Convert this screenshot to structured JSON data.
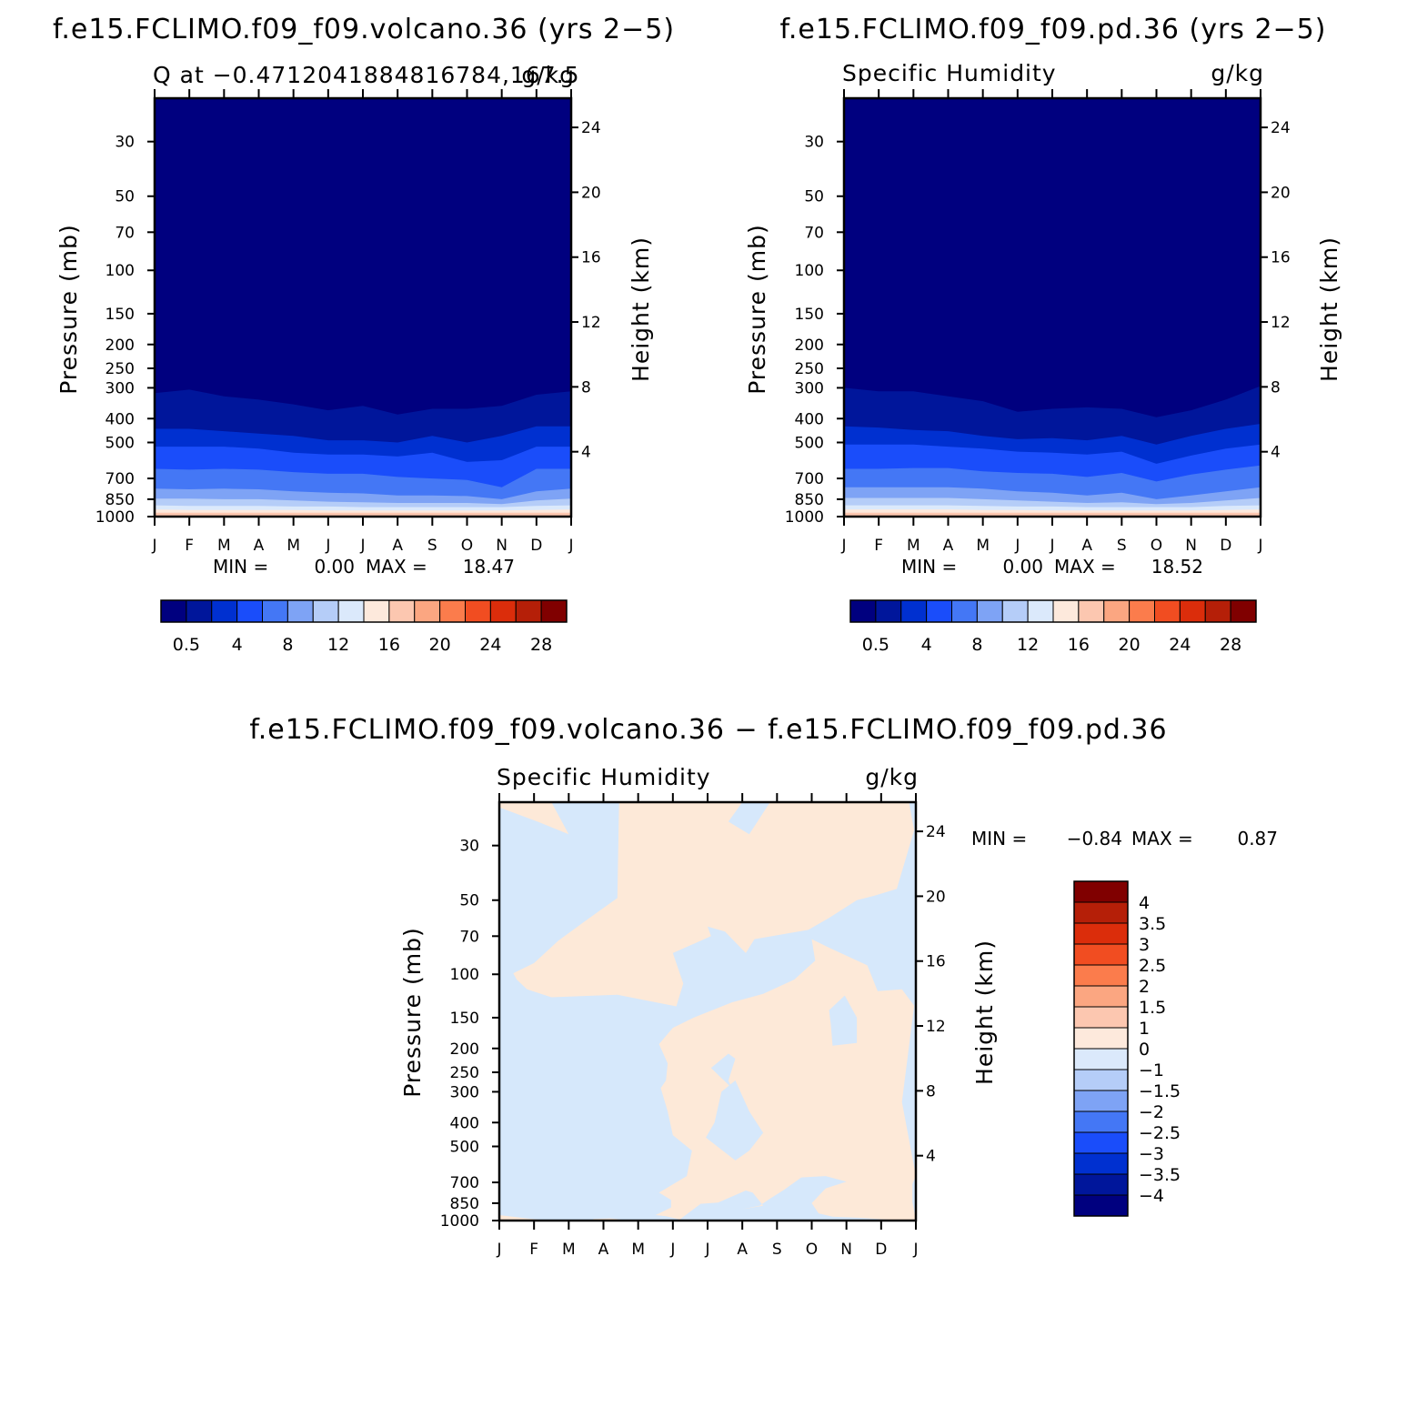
{
  "figure": {
    "panel1_title": "f.e15.FCLIMO.f09_f09.volcano.36 (yrs 2−5)",
    "panel2_title": "f.e15.FCLIMO.f09_f09.pd.36 (yrs 2−5)",
    "panel3_title": "f.e15.FCLIMO.f09_f09.volcano.36 − f.e15.FCLIMO.f09_f09.pd.36"
  },
  "chart_data": [
    {
      "type": "heatmap",
      "left_subtitle": "Q at −0.4712041884816784,167.5",
      "right_subtitle": "g/kg",
      "xlabel": "",
      "ylabel": "Pressure (mb)",
      "ylabel_right": "Height (km)",
      "x_tick_labels": [
        "J",
        "F",
        "M",
        "A",
        "M",
        "J",
        "J",
        "A",
        "S",
        "O",
        "N",
        "D",
        "J"
      ],
      "y_ticks": [
        "30",
        "50",
        "70",
        "100",
        "150",
        "200",
        "250",
        "300",
        "400",
        "500",
        "700",
        "850",
        "1000"
      ],
      "y2_ticks": [
        "24",
        "20",
        "16",
        "12",
        "8",
        "4"
      ],
      "ylim_mb": [
        1000,
        20
      ],
      "min_label": "MIN =",
      "min_value": "0.00",
      "max_label": "MAX =",
      "max_value": "18.47",
      "colorbar_labels": [
        "0.5",
        "4",
        "8",
        "12",
        "16",
        "20",
        "24",
        "28"
      ],
      "contour_levels": [
        0.01,
        0.1,
        0.5,
        1,
        2,
        4,
        6,
        8,
        10,
        12
      ],
      "contour_tops_mb": [
        [
          315,
          305,
          325,
          335,
          350,
          370,
          355,
          385,
          365,
          365,
          355,
          320,
          310
        ],
        [
          440,
          440,
          450,
          460,
          470,
          490,
          490,
          500,
          470,
          500,
          470,
          430,
          430
        ],
        [
          520,
          520,
          520,
          530,
          550,
          560,
          560,
          570,
          550,
          600,
          590,
          520,
          520
        ],
        [
          640,
          645,
          640,
          645,
          660,
          670,
          670,
          690,
          700,
          710,
          760,
          640,
          640
        ],
        [
          770,
          775,
          770,
          775,
          790,
          800,
          805,
          820,
          820,
          825,
          850,
          790,
          770
        ],
        [
          845,
          845,
          850,
          850,
          860,
          870,
          875,
          880,
          880,
          880,
          890,
          860,
          845
        ],
        [
          900,
          905,
          905,
          905,
          910,
          910,
          915,
          915,
          915,
          915,
          915,
          905,
          900
        ],
        [
          935,
          940,
          940,
          940,
          940,
          945,
          945,
          945,
          945,
          945,
          945,
          940,
          935
        ],
        [
          965,
          965,
          965,
          965,
          965,
          965,
          965,
          965,
          965,
          965,
          965,
          965,
          965
        ],
        [
          990,
          990,
          990,
          990,
          990,
          990,
          990,
          990,
          990,
          990,
          990,
          990,
          990
        ]
      ]
    },
    {
      "type": "heatmap",
      "left_subtitle": "Specific Humidity",
      "right_subtitle": "g/kg",
      "xlabel": "",
      "ylabel": "Pressure (mb)",
      "ylabel_right": "Height (km)",
      "x_tick_labels": [
        "J",
        "F",
        "M",
        "A",
        "M",
        "J",
        "J",
        "A",
        "S",
        "O",
        "N",
        "D",
        "J"
      ],
      "y_ticks": [
        "30",
        "50",
        "70",
        "100",
        "150",
        "200",
        "250",
        "300",
        "400",
        "500",
        "700",
        "850",
        "1000"
      ],
      "y2_ticks": [
        "24",
        "20",
        "16",
        "12",
        "8",
        "4"
      ],
      "ylim_mb": [
        1000,
        20
      ],
      "min_label": "MIN =",
      "min_value": "0.00",
      "max_label": "MAX =",
      "max_value": "18.52",
      "colorbar_labels": [
        "0.5",
        "4",
        "8",
        "12",
        "16",
        "20",
        "24",
        "28"
      ],
      "contour_levels": [
        0.01,
        0.1,
        0.5,
        1,
        2,
        4,
        6,
        8,
        10,
        12
      ],
      "contour_tops_mb": [
        [
          300,
          310,
          310,
          325,
          340,
          375,
          365,
          360,
          365,
          395,
          370,
          335,
          295
        ],
        [
          430,
          435,
          445,
          450,
          470,
          485,
          480,
          490,
          470,
          510,
          470,
          440,
          420
        ],
        [
          510,
          510,
          510,
          520,
          530,
          545,
          550,
          560,
          545,
          610,
          565,
          530,
          510
        ],
        [
          640,
          640,
          635,
          635,
          655,
          665,
          670,
          690,
          665,
          720,
          675,
          645,
          620
        ],
        [
          760,
          760,
          760,
          760,
          770,
          790,
          800,
          820,
          800,
          850,
          820,
          790,
          760
        ],
        [
          840,
          840,
          840,
          840,
          850,
          860,
          870,
          880,
          875,
          890,
          880,
          860,
          840
        ],
        [
          900,
          900,
          900,
          900,
          905,
          910,
          910,
          915,
          915,
          915,
          915,
          905,
          900
        ],
        [
          935,
          935,
          935,
          935,
          940,
          940,
          945,
          945,
          945,
          945,
          945,
          940,
          935
        ],
        [
          965,
          965,
          965,
          965,
          965,
          965,
          965,
          965,
          965,
          965,
          965,
          965,
          965
        ],
        [
          990,
          990,
          990,
          990,
          990,
          990,
          990,
          990,
          990,
          990,
          990,
          990,
          990
        ]
      ]
    },
    {
      "type": "heatmap",
      "left_subtitle": "Specific Humidity",
      "right_subtitle": "g/kg",
      "xlabel": "",
      "ylabel": "Pressure (mb)",
      "ylabel_right": "Height (km)",
      "x_tick_labels": [
        "J",
        "F",
        "M",
        "A",
        "M",
        "J",
        "J",
        "A",
        "S",
        "O",
        "N",
        "D",
        "J"
      ],
      "y_ticks": [
        "30",
        "50",
        "70",
        "100",
        "150",
        "200",
        "250",
        "300",
        "400",
        "500",
        "700",
        "850",
        "1000"
      ],
      "y2_ticks": [
        "24",
        "20",
        "16",
        "12",
        "8",
        "4"
      ],
      "ylim_mb": [
        1000,
        20
      ],
      "min_label": "MIN =",
      "min_value": "−0.84",
      "max_label": "MAX =",
      "max_value": "0.87",
      "colorbar_labels": [
        "4",
        "3.5",
        "3",
        "2.5",
        "2",
        "1.5",
        "1",
        "0",
        "−1",
        "−1.5",
        "−2",
        "−2.5",
        "−3",
        "−3.5",
        "−4"
      ],
      "background_interval": "(-1, 0)",
      "positive_region_interval": "(0, 1)",
      "positive_regions": [
        [
          [
            0,
            21
          ],
          [
            1.1,
            24
          ],
          [
            2.0,
            27
          ],
          [
            1.5,
            20
          ],
          [
            0,
            20
          ]
        ],
        [
          [
            0.4,
            99
          ],
          [
            1.0,
            90
          ],
          [
            1.7,
            73
          ],
          [
            2.6,
            59
          ],
          [
            3.4,
            49
          ],
          [
            3.45,
            20
          ],
          [
            7.0,
            20
          ],
          [
            6.6,
            24
          ],
          [
            7.2,
            27
          ],
          [
            7.8,
            20
          ],
          [
            11.8,
            20
          ],
          [
            11.95,
            26
          ],
          [
            11.45,
            45
          ],
          [
            10.8,
            48
          ],
          [
            10.3,
            50
          ],
          [
            9.5,
            59
          ],
          [
            8.9,
            66
          ],
          [
            7.35,
            72
          ],
          [
            7.1,
            82
          ],
          [
            6.5,
            67
          ],
          [
            6.0,
            64
          ],
          [
            6.1,
            70
          ],
          [
            5.0,
            82
          ],
          [
            5.3,
            109
          ],
          [
            5.1,
            135
          ],
          [
            3.4,
            121
          ],
          [
            1.5,
            124
          ],
          [
            0.8,
            115
          ],
          [
            0.5,
            105
          ]
        ],
        [
          [
            4.6,
            192
          ],
          [
            5.0,
            165
          ],
          [
            5.6,
            150
          ],
          [
            6.7,
            130
          ],
          [
            7.6,
            120
          ],
          [
            8.5,
            105
          ],
          [
            9.1,
            88
          ],
          [
            9.0,
            72
          ],
          [
            9.5,
            78
          ],
          [
            10.6,
            92
          ],
          [
            10.9,
            117
          ],
          [
            11.6,
            115
          ],
          [
            11.95,
            134
          ],
          [
            11.6,
            330
          ],
          [
            12.0,
            660
          ],
          [
            11.9,
            710
          ],
          [
            11.9,
            840
          ],
          [
            12.0,
            990
          ],
          [
            11.6,
            1000
          ],
          [
            10.4,
            975
          ],
          [
            9.6,
            965
          ],
          [
            9.2,
            935
          ],
          [
            9.0,
            850
          ],
          [
            9.4,
            740
          ],
          [
            10.0,
            695
          ],
          [
            9.4,
            660
          ],
          [
            8.7,
            668
          ],
          [
            8.2,
            750
          ],
          [
            7.8,
            815
          ],
          [
            7.5,
            870
          ],
          [
            7.0,
            900
          ],
          [
            7.6,
            870
          ],
          [
            7.3,
            770
          ],
          [
            7.1,
            755
          ],
          [
            6.3,
            845
          ],
          [
            5.8,
            855
          ],
          [
            5.2,
            990
          ],
          [
            4.8,
            960
          ],
          [
            4.5,
            950
          ],
          [
            4.95,
            885
          ],
          [
            4.95,
            825
          ],
          [
            4.6,
            770
          ],
          [
            5.4,
            660
          ],
          [
            5.55,
            520
          ],
          [
            5.0,
            450
          ],
          [
            4.85,
            360
          ],
          [
            4.65,
            290
          ],
          [
            4.8,
            270
          ],
          [
            4.85,
            230
          ]
        ],
        [
          [
            0,
            950
          ],
          [
            0.8,
            980
          ],
          [
            1.4,
            1000
          ],
          [
            0,
            1000
          ]
        ],
        [
          [
            2.75,
            1000
          ],
          [
            3.5,
            990
          ],
          [
            3.2,
            980
          ],
          [
            2.7,
            985
          ]
        ]
      ],
      "negative_holes": [
        [
          [
            9.5,
            140
          ],
          [
            9.95,
            122
          ],
          [
            10.3,
            150
          ],
          [
            10.3,
            190
          ],
          [
            9.6,
            195
          ],
          [
            9.55,
            160
          ]
        ],
        [
          [
            6.1,
            240
          ],
          [
            6.6,
            210
          ],
          [
            6.8,
            220
          ],
          [
            6.6,
            270
          ],
          [
            6.7,
            290
          ]
        ],
        [
          [
            6.4,
            300
          ],
          [
            6.8,
            270
          ],
          [
            7.2,
            360
          ],
          [
            7.6,
            440
          ],
          [
            7.2,
            520
          ],
          [
            6.8,
            570
          ],
          [
            5.95,
            460
          ],
          [
            6.2,
            400
          ]
        ]
      ]
    }
  ]
}
